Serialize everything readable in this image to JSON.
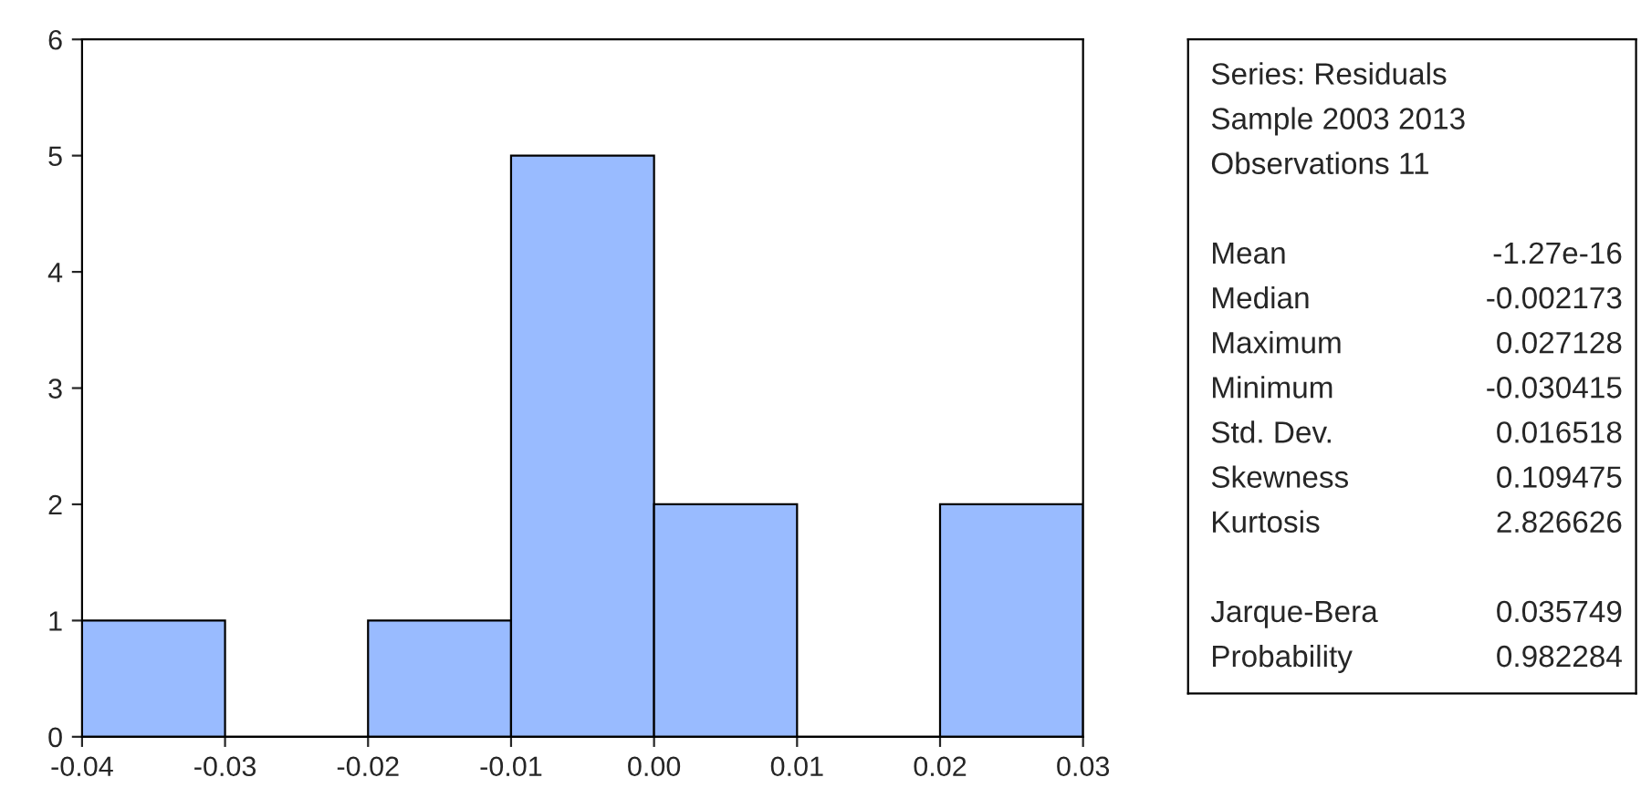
{
  "chart_data": [
    {
      "type": "histogram",
      "bins": [
        -0.04,
        -0.03,
        -0.02,
        -0.01,
        0,
        0.01,
        0.02,
        0.03
      ],
      "values": [
        1,
        0,
        1,
        5,
        2,
        0,
        2
      ],
      "color": "#99bbff",
      "xlim": [
        -0.04,
        0.03
      ],
      "xticks": [
        -0.04,
        -0.03,
        -0.02,
        -0.01,
        {
          "value": 0,
          "label": "0.00"
        },
        0.01,
        0.02,
        0.03
      ],
      "ylim": [
        0,
        6
      ],
      "yticks": [
        0,
        1,
        2,
        3,
        4,
        5,
        6
      ],
      "grid": false
    },
    {
      "type": "other",
      "annotations": [
        "Series: Residuals",
        "Sample 2003 2013",
        "Observations 11"
      ],
      "categories": [
        "Mean",
        "Median",
        "Maximum",
        "Minimum",
        "Std. Dev.",
        "Skewness",
        "Kurtosis",
        null,
        "Jarque-Bera",
        "Probability"
      ],
      "value_labels": [
        "-1.27e-16",
        "-0.002173",
        "0.027128",
        "-0.030415",
        "0.016518",
        "0.109475",
        "2.826626",
        null,
        "0.035749",
        "0.982284"
      ]
    }
  ]
}
